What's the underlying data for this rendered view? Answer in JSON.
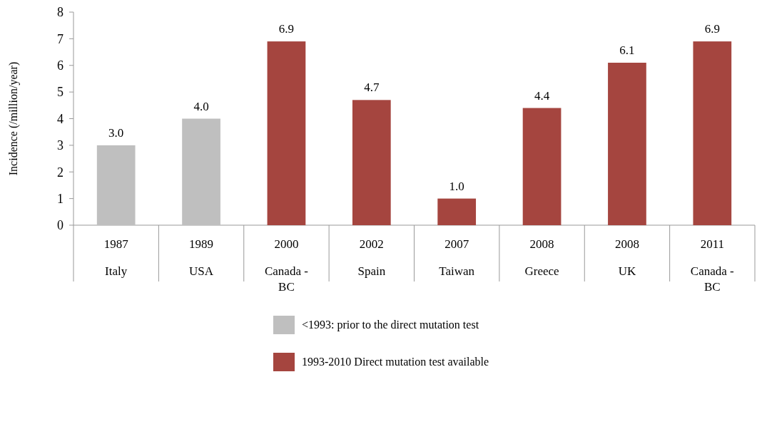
{
  "chart_data": {
    "type": "bar",
    "ylabel": "Incidence (/million/year)",
    "categories": [
      "1987\nItaly",
      "1989\nUSA",
      "2000\nCanada - BC",
      "2002\nSpain",
      "2007\nTaiwan",
      "2008\nGreece",
      "2008\nUK",
      "2011\nCanada - BC"
    ],
    "series": [
      {
        "name": "<1993: prior to the direct mutation test",
        "color": "#bfbfbf",
        "values": [
          3.0,
          4.0,
          null,
          null,
          null,
          null,
          null,
          null
        ],
        "value_labels": [
          "3.0",
          "4.0",
          null,
          null,
          null,
          null,
          null,
          null
        ]
      },
      {
        "name": "1993-2010 Direct mutation test available",
        "color": "#a5453f",
        "values": [
          null,
          null,
          6.9,
          4.7,
          1.0,
          4.4,
          6.1,
          6.9
        ],
        "value_labels": [
          null,
          null,
          "6.9",
          "4.7",
          "1.0",
          "4.4",
          "6.1",
          "6.9"
        ]
      }
    ],
    "ylim": [
      0,
      8
    ],
    "yticks": [
      0,
      1,
      2,
      3,
      4,
      5,
      6,
      7,
      8
    ],
    "legend": "bottom"
  }
}
